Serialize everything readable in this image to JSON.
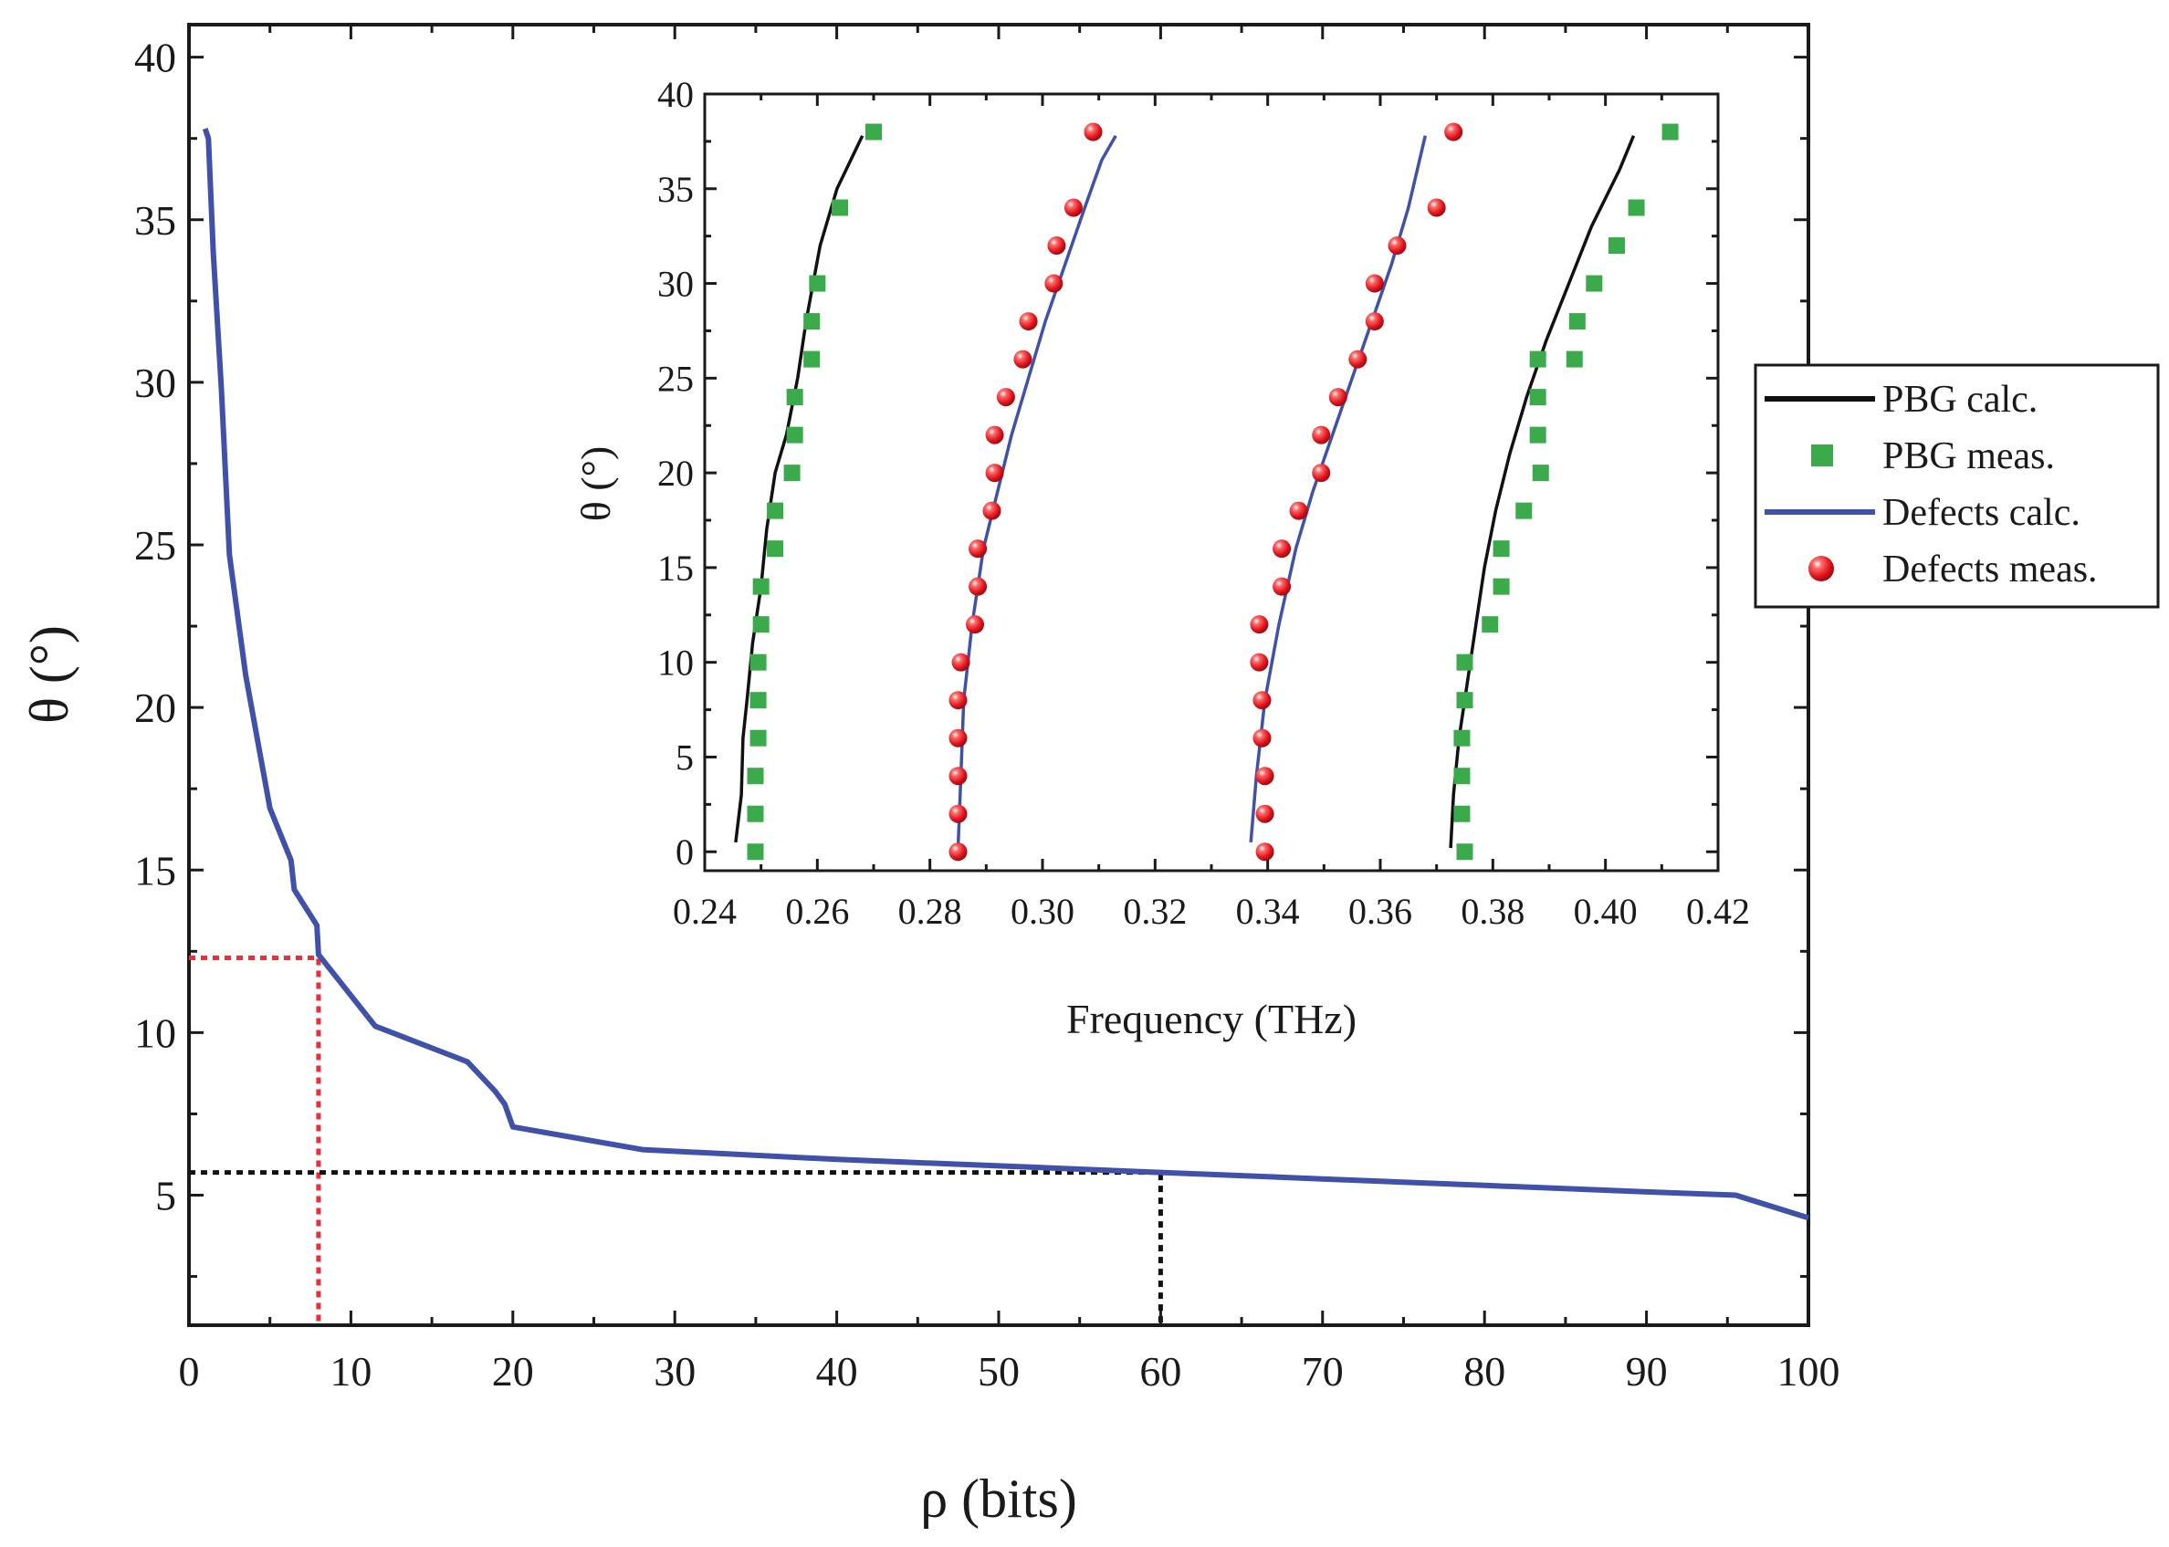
{
  "chart_data": [
    {
      "type": "line",
      "name": "main",
      "xlabel": "ρ (bits)",
      "ylabel": "θ (°)",
      "xlim": [
        0,
        100
      ],
      "ylim": [
        1,
        41
      ],
      "xticks": [
        0,
        10,
        20,
        30,
        40,
        50,
        60,
        70,
        80,
        90,
        100
      ],
      "yticks": [
        5,
        10,
        15,
        20,
        25,
        30,
        35,
        40
      ],
      "series": [
        {
          "name": "Defects calc.",
          "color": "#3f51a8",
          "x": [
            1.0,
            1.2,
            1.5,
            2.0,
            2.5,
            3.5,
            5.0,
            6.3,
            6.5,
            7.9,
            8.0,
            11.5,
            17.2,
            18.9,
            19.5,
            20.0,
            28.0,
            40,
            50,
            60,
            70,
            80,
            90,
            95.5,
            100
          ],
          "y": [
            37.8,
            37.5,
            34.0,
            29.8,
            24.7,
            21.0,
            16.9,
            15.3,
            14.4,
            13.3,
            12.4,
            10.2,
            9.1,
            8.2,
            7.8,
            7.1,
            6.4,
            6.1,
            5.9,
            5.7,
            5.5,
            5.3,
            5.1,
            5.0,
            4.3
          ]
        }
      ],
      "annotations": [
        {
          "type": "dotted-guide",
          "color": "#e8303a",
          "x": 8,
          "y": 12.3
        },
        {
          "type": "dotted-guide",
          "color": "#111111",
          "x": 60,
          "y": 5.7
        }
      ]
    },
    {
      "type": "scatter",
      "name": "inset",
      "xlabel": "Frequency (THz)",
      "ylabel": "θ (°)",
      "xlim": [
        0.24,
        0.42
      ],
      "ylim": [
        -1,
        40
      ],
      "xticks": [
        "0.24",
        "0.26",
        "0.28",
        "0.30",
        "0.32",
        "0.34",
        "0.36",
        "0.38",
        "0.40",
        "0.42"
      ],
      "yticks": [
        0,
        5,
        10,
        15,
        20,
        25,
        30,
        35,
        40
      ],
      "lines": [
        {
          "name": "PBG calc.",
          "color": "#111111",
          "x": [
            0.2455,
            0.2465,
            0.2468,
            0.2475,
            0.2485,
            0.25,
            0.251,
            0.2525,
            0.2545,
            0.2565,
            0.258,
            0.2605,
            0.2635,
            0.268
          ],
          "y": [
            0.5,
            3,
            6,
            8,
            11,
            14,
            17,
            20,
            22,
            25,
            28,
            32,
            35,
            37.8
          ]
        },
        {
          "name": "PBG calc.",
          "color": "#111111",
          "x": [
            0.3725,
            0.373,
            0.374,
            0.3755,
            0.377,
            0.3785,
            0.3805,
            0.383,
            0.386,
            0.3895,
            0.3935,
            0.3975,
            0.4025,
            0.405
          ],
          "y": [
            0.2,
            3,
            6,
            9,
            12,
            15,
            18,
            21,
            24,
            27,
            30,
            33,
            36,
            37.8
          ]
        },
        {
          "name": "Defects calc.",
          "color": "#3f51a8",
          "x": [
            0.285,
            0.2855,
            0.286,
            0.2875,
            0.2895,
            0.292,
            0.2945,
            0.2975,
            0.3005,
            0.304,
            0.3075,
            0.3105,
            0.313
          ],
          "y": [
            0.2,
            4,
            8,
            12,
            16,
            19,
            22,
            25,
            28,
            31,
            34,
            36.5,
            37.8
          ]
        },
        {
          "name": "Defects calc.",
          "color": "#3f51a8",
          "x": [
            0.337,
            0.338,
            0.3395,
            0.342,
            0.345,
            0.348,
            0.3515,
            0.355,
            0.3585,
            0.362,
            0.365,
            0.368
          ],
          "y": [
            0.5,
            4,
            8,
            12,
            16,
            19,
            22,
            25,
            28,
            31,
            34,
            37.8
          ]
        }
      ],
      "points": [
        {
          "name": "PBG meas.",
          "color": "#3aaa4a",
          "marker": "square",
          "x": [
            0.249,
            0.249,
            0.249,
            0.2495,
            0.2495,
            0.2495,
            0.25,
            0.25,
            0.2525,
            0.2525,
            0.2555,
            0.256,
            0.256,
            0.259,
            0.259,
            0.26,
            0.264,
            0.27
          ],
          "y": [
            0,
            2,
            4,
            6,
            8,
            10,
            12,
            14,
            16,
            18,
            20,
            22,
            24,
            26,
            28,
            30,
            34,
            38
          ]
        },
        {
          "name": "PBG meas.",
          "color": "#3aaa4a",
          "marker": "square",
          "x": [
            0.375,
            0.3745,
            0.3745,
            0.3745,
            0.375,
            0.375,
            0.3795,
            0.3815,
            0.3815,
            0.3855,
            0.3885,
            0.388,
            0.388,
            0.388,
            0.3945,
            0.395,
            0.398,
            0.402,
            0.4055,
            0.4115
          ],
          "y": [
            0,
            2,
            4,
            6,
            8,
            10,
            12,
            14,
            16,
            18,
            20,
            22,
            24,
            26,
            26,
            28,
            30,
            32,
            34,
            38
          ]
        },
        {
          "name": "Defects meas.",
          "color": "#e8262e",
          "marker": "sphere",
          "x": [
            0.285,
            0.285,
            0.285,
            0.285,
            0.285,
            0.2855,
            0.288,
            0.2885,
            0.2885,
            0.291,
            0.2915,
            0.2915,
            0.2935,
            0.2965,
            0.2975,
            0.302,
            0.3025,
            0.3055,
            0.309
          ],
          "y": [
            0,
            2,
            4,
            6,
            8,
            10,
            12,
            14,
            16,
            18,
            20,
            22,
            24,
            26,
            28,
            30,
            32,
            34,
            38
          ]
        },
        {
          "name": "Defects meas.",
          "color": "#e8262e",
          "marker": "sphere",
          "x": [
            0.3395,
            0.3395,
            0.3395,
            0.339,
            0.339,
            0.3385,
            0.3385,
            0.3425,
            0.3425,
            0.3455,
            0.3495,
            0.3495,
            0.3525,
            0.356,
            0.359,
            0.359,
            0.363,
            0.37,
            0.373
          ],
          "y": [
            0,
            2,
            4,
            6,
            8,
            10,
            12,
            14,
            16,
            18,
            20,
            22,
            24,
            26,
            28,
            30,
            32,
            34,
            38
          ]
        }
      ],
      "legend": {
        "placement": "right",
        "entries": [
          {
            "label": "PBG calc.",
            "marker": "line",
            "color": "#111111"
          },
          {
            "label": "PBG meas.",
            "marker": "square",
            "color": "#3aaa4a"
          },
          {
            "label": "Defects calc.",
            "marker": "line",
            "color": "#3f51a8"
          },
          {
            "label": "Defects meas.",
            "marker": "sphere",
            "color": "#e8262e"
          }
        ]
      }
    }
  ]
}
